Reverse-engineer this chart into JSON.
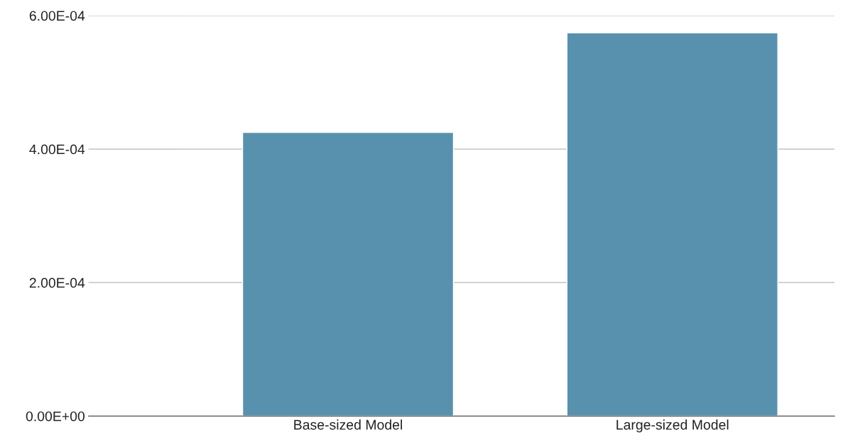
{
  "chart_data": {
    "type": "bar",
    "categories": [
      "Base-sized Model",
      "Large-sized Model"
    ],
    "values": [
      0.000425,
      0.000574
    ],
    "color": "#5891ae",
    "ylim": [
      0,
      0.0006
    ],
    "yticks": [
      {
        "value": 0,
        "label": "0.00E+00"
      },
      {
        "value": 0.0002,
        "label": "2.00E-04"
      },
      {
        "value": 0.0004,
        "label": "4.00E-04"
      },
      {
        "value": 0.0006,
        "label": "6.00E-04"
      }
    ],
    "grid": "y",
    "legend": false
  }
}
